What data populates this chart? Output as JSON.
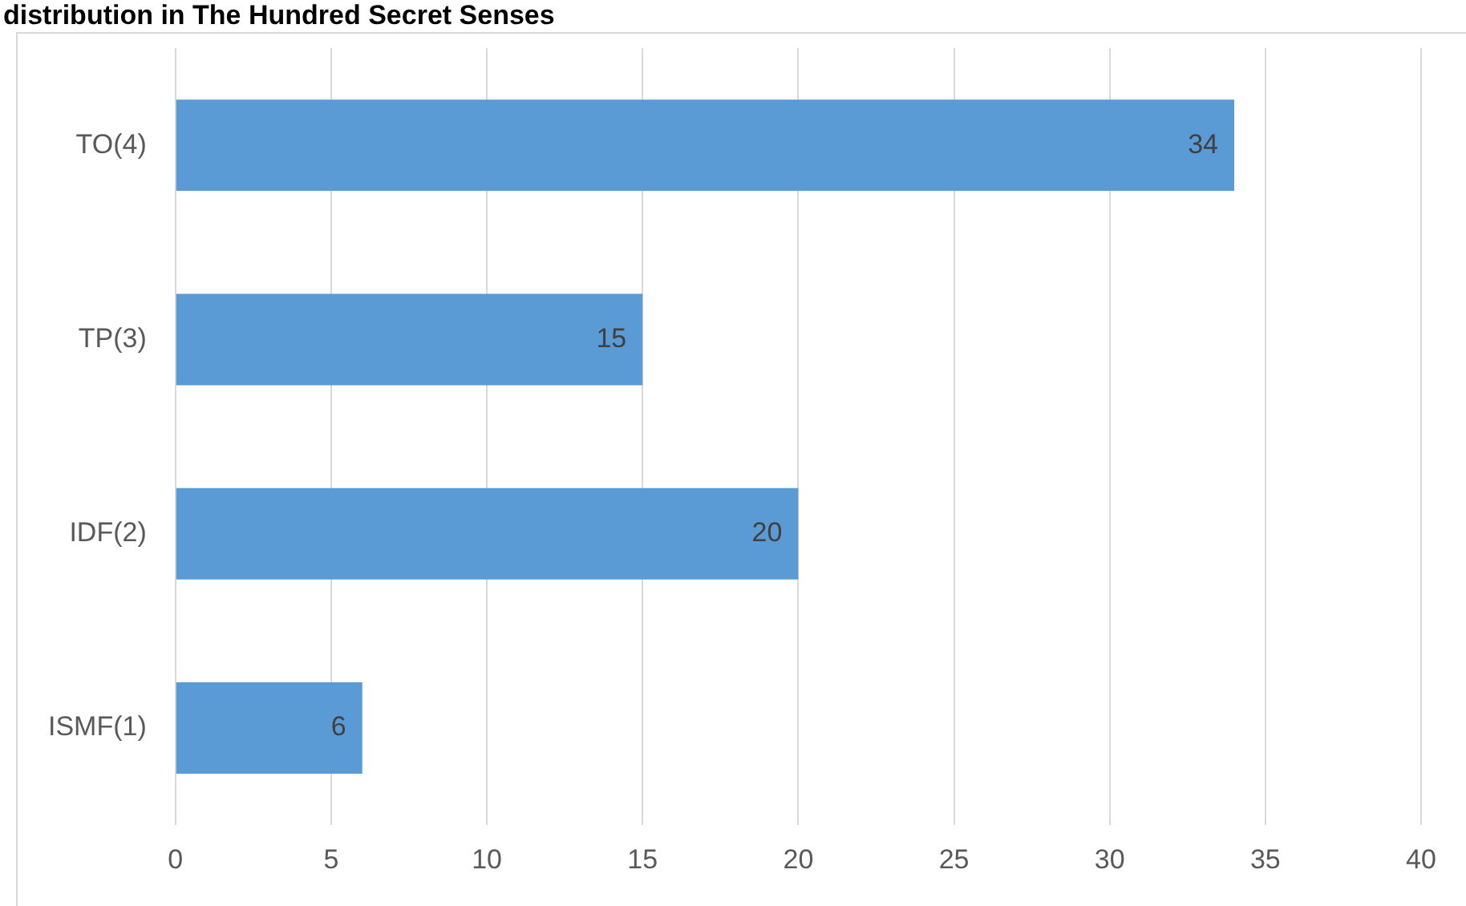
{
  "chart_data": {
    "type": "bar",
    "orientation": "horizontal",
    "title": "distribution in The Hundred Secret Senses",
    "categories": [
      "TO(4)",
      "TP(3)",
      "IDF(2)",
      "ISMF(1)"
    ],
    "values": [
      34,
      15,
      20,
      6
    ],
    "color": "#5b9bd5",
    "xlim": [
      0,
      40
    ],
    "xticks": [
      0,
      5,
      10,
      15,
      20,
      25,
      30,
      35,
      40
    ],
    "grid": "x",
    "data_labels": true,
    "legend": false
  }
}
